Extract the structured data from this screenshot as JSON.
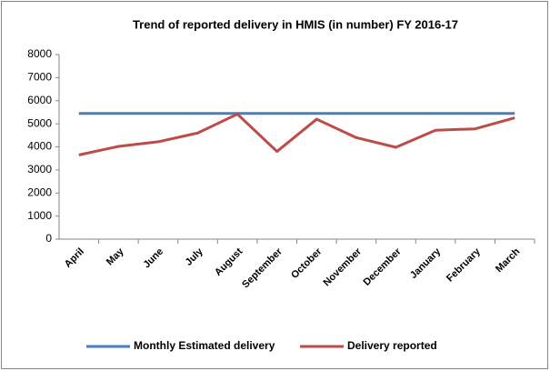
{
  "chart_data": {
    "type": "line",
    "title": "Trend of reported delivery in HMIS (in number) FY 2016-17",
    "categories": [
      "April",
      "May",
      "June",
      "July",
      "August",
      "September",
      "October",
      "November",
      "December",
      "January",
      "February",
      "March"
    ],
    "series": [
      {
        "name": "Monthly Estimated delivery",
        "color": "#4a7ebb",
        "values": [
          5450,
          5450,
          5450,
          5450,
          5450,
          5450,
          5450,
          5450,
          5450,
          5450,
          5450,
          5450
        ]
      },
      {
        "name": "Delivery reported",
        "color": "#be4b48",
        "values": [
          3650,
          4020,
          4220,
          4600,
          5420,
          3800,
          5200,
          4400,
          3980,
          4720,
          4780,
          5260
        ]
      }
    ],
    "ylim": [
      0,
      8000
    ],
    "yticks": [
      0,
      1000,
      2000,
      3000,
      4000,
      5000,
      6000,
      7000,
      8000
    ],
    "grid": false,
    "legend": "bottom"
  }
}
